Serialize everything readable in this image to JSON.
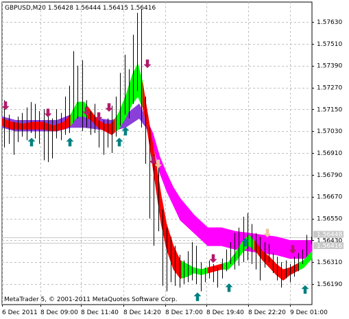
{
  "chart_data": {
    "type": "line",
    "title": "GBPUSD,M20  1.56428 1.56444 1.56415 1.56416",
    "symbol": "GBPUSD,M20",
    "ohlc": [
      "1.56428",
      "1.56444",
      "1.56415",
      "1.56416"
    ],
    "footer": "MetaTrader 5, © 2001-2011 MetaQuotes Software Corp.",
    "bid_label": "1.56448",
    "last_label": "1.56416",
    "bid_value": 1.56448,
    "last_value": 1.56416,
    "ylim": [
      1.5614,
      1.5772
    ],
    "y_ticks": [
      "1.57630",
      "1.57510",
      "1.57390",
      "1.57270",
      "1.57150",
      "1.57030",
      "1.56910",
      "1.56790",
      "1.56670",
      "1.56550",
      "1.56430",
      "1.56310",
      "1.56190"
    ],
    "x_ticks": [
      "6 Dec 2011",
      "8 Dec 09:00",
      "8 Dec 11:40",
      "8 Dec 14:20",
      "8 Dec 17:00",
      "8 Dec 19:40",
      "8 Dec 22:20",
      "9 Dec 01:00"
    ],
    "grid": true,
    "bars": [
      {
        "x": 3,
        "h": 1.572,
        "l": 1.5694
      },
      {
        "x": 10,
        "h": 1.5712,
        "l": 1.5696
      },
      {
        "x": 17,
        "h": 1.5708,
        "l": 1.569
      },
      {
        "x": 23,
        "h": 1.5711,
        "l": 1.5697
      },
      {
        "x": 29,
        "h": 1.5713,
        "l": 1.57
      },
      {
        "x": 36,
        "h": 1.5716,
        "l": 1.5698
      },
      {
        "x": 42,
        "h": 1.5719,
        "l": 1.5702
      },
      {
        "x": 48,
        "h": 1.5718,
        "l": 1.5699
      },
      {
        "x": 54,
        "h": 1.5714,
        "l": 1.5696
      },
      {
        "x": 61,
        "h": 1.5715,
        "l": 1.5687
      },
      {
        "x": 67,
        "h": 1.5712,
        "l": 1.5686
      },
      {
        "x": 73,
        "h": 1.571,
        "l": 1.5688
      },
      {
        "x": 79,
        "h": 1.5715,
        "l": 1.5699
      },
      {
        "x": 86,
        "h": 1.5713,
        "l": 1.5698
      },
      {
        "x": 92,
        "h": 1.5722,
        "l": 1.5701
      },
      {
        "x": 98,
        "h": 1.5728,
        "l": 1.5702
      },
      {
        "x": 104,
        "h": 1.5747,
        "l": 1.5708
      },
      {
        "x": 110,
        "h": 1.5739,
        "l": 1.571
      },
      {
        "x": 117,
        "h": 1.5742,
        "l": 1.5703
      },
      {
        "x": 123,
        "h": 1.572,
        "l": 1.5705
      },
      {
        "x": 129,
        "h": 1.5714,
        "l": 1.5701
      },
      {
        "x": 135,
        "h": 1.5718,
        "l": 1.5702
      },
      {
        "x": 141,
        "h": 1.5711,
        "l": 1.5694
      },
      {
        "x": 148,
        "h": 1.5709,
        "l": 1.569
      },
      {
        "x": 154,
        "h": 1.571,
        "l": 1.5694
      },
      {
        "x": 160,
        "h": 1.5717,
        "l": 1.5691
      },
      {
        "x": 166,
        "h": 1.5722,
        "l": 1.57
      },
      {
        "x": 172,
        "h": 1.5735,
        "l": 1.5706
      },
      {
        "x": 179,
        "h": 1.5745,
        "l": 1.5712
      },
      {
        "x": 185,
        "h": 1.5737,
        "l": 1.571
      },
      {
        "x": 191,
        "h": 1.5756,
        "l": 1.5718
      },
      {
        "x": 197,
        "h": 1.5768,
        "l": 1.5725
      },
      {
        "x": 203,
        "h": 1.577,
        "l": 1.5705
      },
      {
        "x": 209,
        "h": 1.5722,
        "l": 1.5685
      },
      {
        "x": 215,
        "h": 1.5705,
        "l": 1.5655
      },
      {
        "x": 221,
        "h": 1.569,
        "l": 1.564
      },
      {
        "x": 228,
        "h": 1.5685,
        "l": 1.5648
      },
      {
        "x": 234,
        "h": 1.566,
        "l": 1.5618
      },
      {
        "x": 240,
        "h": 1.565,
        "l": 1.5615
      },
      {
        "x": 246,
        "h": 1.5645,
        "l": 1.562
      },
      {
        "x": 252,
        "h": 1.564,
        "l": 1.5618
      },
      {
        "x": 259,
        "h": 1.5635,
        "l": 1.5617
      },
      {
        "x": 265,
        "h": 1.5632,
        "l": 1.5619
      },
      {
        "x": 271,
        "h": 1.5637,
        "l": 1.562
      },
      {
        "x": 277,
        "h": 1.5642,
        "l": 1.5621
      },
      {
        "x": 283,
        "h": 1.564,
        "l": 1.5619
      },
      {
        "x": 290,
        "h": 1.5631,
        "l": 1.5615
      },
      {
        "x": 296,
        "h": 1.5628,
        "l": 1.562
      },
      {
        "x": 302,
        "h": 1.5632,
        "l": 1.5622
      },
      {
        "x": 308,
        "h": 1.563,
        "l": 1.562
      },
      {
        "x": 314,
        "h": 1.5628,
        "l": 1.5617
      },
      {
        "x": 321,
        "h": 1.5633,
        "l": 1.5622
      },
      {
        "x": 327,
        "h": 1.5638,
        "l": 1.5626
      },
      {
        "x": 333,
        "h": 1.5642,
        "l": 1.563
      },
      {
        "x": 339,
        "h": 1.5647,
        "l": 1.5627
      },
      {
        "x": 345,
        "h": 1.565,
        "l": 1.5629
      },
      {
        "x": 352,
        "h": 1.5656,
        "l": 1.5631
      },
      {
        "x": 358,
        "h": 1.5658,
        "l": 1.5632
      },
      {
        "x": 364,
        "h": 1.5652,
        "l": 1.563
      },
      {
        "x": 370,
        "h": 1.5647,
        "l": 1.5627
      },
      {
        "x": 376,
        "h": 1.5645,
        "l": 1.5621
      },
      {
        "x": 383,
        "h": 1.5642,
        "l": 1.5628
      },
      {
        "x": 389,
        "h": 1.5641,
        "l": 1.5631
      },
      {
        "x": 395,
        "h": 1.5636,
        "l": 1.5625
      },
      {
        "x": 401,
        "h": 1.5634,
        "l": 1.5621
      },
      {
        "x": 407,
        "h": 1.5631,
        "l": 1.5617
      },
      {
        "x": 414,
        "h": 1.5632,
        "l": 1.5622
      },
      {
        "x": 420,
        "h": 1.563,
        "l": 1.562
      },
      {
        "x": 426,
        "h": 1.5634,
        "l": 1.5623
      },
      {
        "x": 432,
        "h": 1.5636,
        "l": 1.5626
      },
      {
        "x": 438,
        "h": 1.5638,
        "l": 1.563
      },
      {
        "x": 444,
        "h": 1.5646,
        "l": 1.5634
      },
      {
        "x": 451,
        "h": 1.5645,
        "l": 1.5641
      }
    ],
    "slow_band": {
      "x": [
        0,
        20,
        40,
        60,
        80,
        100,
        120,
        140,
        160,
        180,
        200,
        210,
        220,
        230,
        240,
        250,
        260,
        280,
        300,
        320,
        340,
        360,
        380,
        400,
        420,
        440,
        452
      ],
      "upper": [
        1.5711,
        1.5709,
        1.5709,
        1.5709,
        1.5709,
        1.5712,
        1.5712,
        1.571,
        1.5709,
        1.5712,
        1.5718,
        1.571,
        1.5702,
        1.5689,
        1.568,
        1.5672,
        1.5666,
        1.5657,
        1.565,
        1.565,
        1.5648,
        1.5647,
        1.5646,
        1.5645,
        1.5643,
        1.5643,
        1.5643
      ],
      "lower": [
        1.5705,
        1.5703,
        1.5703,
        1.5703,
        1.5703,
        1.5705,
        1.5705,
        1.5704,
        1.5703,
        1.5705,
        1.571,
        1.5705,
        1.5696,
        1.568,
        1.567,
        1.5662,
        1.5654,
        1.5647,
        1.564,
        1.564,
        1.5638,
        1.5637,
        1.5636,
        1.5635,
        1.5633,
        1.5633,
        1.5633
      ],
      "segments": [
        {
          "from": 0,
          "to": 215,
          "color": "#8b3fd9"
        },
        {
          "from": 215,
          "to": 452,
          "color": "#ff00ff"
        }
      ]
    },
    "fast_band": {
      "x": [
        0,
        15,
        30,
        45,
        60,
        75,
        90,
        100,
        110,
        120,
        130,
        140,
        150,
        160,
        170,
        180,
        190,
        198,
        205,
        210,
        218,
        225,
        232,
        240,
        250,
        260,
        270,
        280,
        290,
        300,
        310,
        320,
        330,
        340,
        350,
        360,
        370,
        380,
        390,
        400,
        410,
        420,
        430,
        440,
        452
      ],
      "upper": [
        1.571,
        1.5708,
        1.5707,
        1.5708,
        1.5708,
        1.5706,
        1.5708,
        1.5712,
        1.5719,
        1.5719,
        1.5714,
        1.5709,
        1.5707,
        1.5707,
        1.5713,
        1.5722,
        1.5734,
        1.574,
        1.573,
        1.5718,
        1.57,
        1.5685,
        1.5668,
        1.5652,
        1.564,
        1.5632,
        1.563,
        1.5628,
        1.5627,
        1.5628,
        1.5629,
        1.563,
        1.5631,
        1.5636,
        1.5642,
        1.5646,
        1.5642,
        1.5637,
        1.5634,
        1.563,
        1.5627,
        1.5628,
        1.563,
        1.5632,
        1.5637
      ],
      "lower": [
        1.5706,
        1.5704,
        1.5704,
        1.5704,
        1.5704,
        1.5703,
        1.5704,
        1.5706,
        1.5711,
        1.5711,
        1.5709,
        1.5705,
        1.5703,
        1.5701,
        1.5704,
        1.571,
        1.5718,
        1.5722,
        1.5716,
        1.5708,
        1.5688,
        1.567,
        1.5652,
        1.5638,
        1.5627,
        1.5622,
        1.5623,
        1.5625,
        1.5624,
        1.5625,
        1.5626,
        1.5627,
        1.5627,
        1.5631,
        1.5636,
        1.564,
        1.5637,
        1.5632,
        1.5628,
        1.5624,
        1.5621,
        1.5624,
        1.5626,
        1.5628,
        1.5633
      ],
      "segments": [
        {
          "from": 0,
          "to": 100,
          "color": "#ff0000"
        },
        {
          "from": 100,
          "to": 125,
          "color": "#00ff00"
        },
        {
          "from": 125,
          "to": 165,
          "color": "#ff0000"
        },
        {
          "from": 165,
          "to": 205,
          "color": "#00ff00"
        },
        {
          "from": 205,
          "to": 262,
          "color": "#ff0000"
        },
        {
          "from": 262,
          "to": 300,
          "color": "#00ff00"
        },
        {
          "from": 300,
          "to": 322,
          "color": "#ff0000"
        },
        {
          "from": 322,
          "to": 368,
          "color": "#00ff00"
        },
        {
          "from": 368,
          "to": 432,
          "color": "#ff0000"
        },
        {
          "from": 432,
          "to": 452,
          "color": "#00ff00"
        }
      ]
    },
    "signals": [
      {
        "x": 5,
        "y": 1.5717,
        "dir": "down",
        "color": "#b3186b"
      },
      {
        "x": 43,
        "y": 1.5697,
        "dir": "up",
        "color": "#008080"
      },
      {
        "x": 67,
        "y": 1.5713,
        "dir": "down",
        "color": "#b3186b"
      },
      {
        "x": 99,
        "y": 1.5697,
        "dir": "up",
        "color": "#008080"
      },
      {
        "x": 123,
        "y": 1.5714,
        "dir": "down",
        "color": "#b3186b"
      },
      {
        "x": 141,
        "y": 1.5711,
        "dir": "down",
        "color": "#b3186b"
      },
      {
        "x": 156,
        "y": 1.5716,
        "dir": "down",
        "color": "#b3186b"
      },
      {
        "x": 171,
        "y": 1.5697,
        "dir": "up",
        "color": "#008080"
      },
      {
        "x": 180,
        "y": 1.5703,
        "dir": "up",
        "color": "#008080"
      },
      {
        "x": 212,
        "y": 1.574,
        "dir": "down",
        "color": "#b3186b"
      },
      {
        "x": 220,
        "y": 1.5687,
        "dir": "down",
        "color": "#b3186b"
      },
      {
        "x": 228,
        "y": 1.5685,
        "dir": "down",
        "color": "#e8c8a0"
      },
      {
        "x": 285,
        "y": 1.5612,
        "dir": "up",
        "color": "#008080"
      },
      {
        "x": 308,
        "y": 1.5633,
        "dir": "down",
        "color": "#b3186b"
      },
      {
        "x": 331,
        "y": 1.5617,
        "dir": "up",
        "color": "#008080"
      },
      {
        "x": 355,
        "y": 1.5642,
        "dir": "up",
        "color": "#008080"
      },
      {
        "x": 387,
        "y": 1.5647,
        "dir": "down",
        "color": "#e8c8a0"
      },
      {
        "x": 424,
        "y": 1.5638,
        "dir": "down",
        "color": "#b3186b"
      },
      {
        "x": 442,
        "y": 1.5616,
        "dir": "up",
        "color": "#008080"
      }
    ]
  }
}
